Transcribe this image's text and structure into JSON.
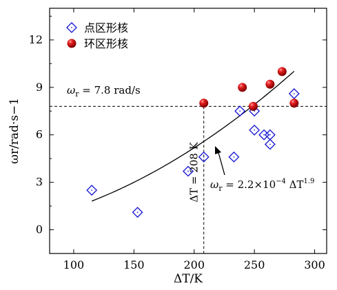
{
  "chart_data": {
    "type": "scatter",
    "xlabel": "ΔT/K",
    "ylabel": "ωr/rad·s−1",
    "xlim": [
      80,
      310
    ],
    "ylim": [
      -1.5,
      14
    ],
    "xticks": [
      100,
      150,
      200,
      250,
      300
    ],
    "yticks": [
      0,
      3,
      6,
      9,
      12
    ],
    "series": [
      {
        "name": "点区形核",
        "marker": "diamond",
        "color": "#1f1fd6",
        "points": [
          [
            115,
            2.5
          ],
          [
            153,
            1.1
          ],
          [
            195,
            3.7
          ],
          [
            208,
            4.6
          ],
          [
            233,
            4.6
          ],
          [
            238,
            7.5
          ],
          [
            250,
            7.5
          ],
          [
            250,
            6.3
          ],
          [
            258,
            6.0
          ],
          [
            263,
            6.0
          ],
          [
            263,
            5.4
          ],
          [
            283,
            8.6
          ]
        ]
      },
      {
        "name": "环区形核",
        "marker": "ball",
        "color": "#d90000",
        "points": [
          [
            208,
            8.0
          ],
          [
            240,
            9.0
          ],
          [
            249,
            7.8
          ],
          [
            263,
            9.2
          ],
          [
            273,
            10.0
          ],
          [
            283,
            8.0
          ]
        ]
      }
    ],
    "fit_curve": {
      "a": 0.00022,
      "b": 1.9,
      "x_range": [
        115,
        283
      ]
    },
    "hline": {
      "y": 7.8,
      "label_main": "ω",
      "label_sub": "r",
      "label_rest": " = 7.8 rad/s"
    },
    "vline": {
      "x": 208,
      "label": "ΔT = 208 K"
    },
    "fit_label": {
      "main": "ω",
      "sub": "r",
      "mid": " = 2.2×10",
      "exp1": "−4",
      "mid2": " ΔT",
      "exp2": "1.9"
    },
    "legend_position": "top-left",
    "grid": false
  }
}
